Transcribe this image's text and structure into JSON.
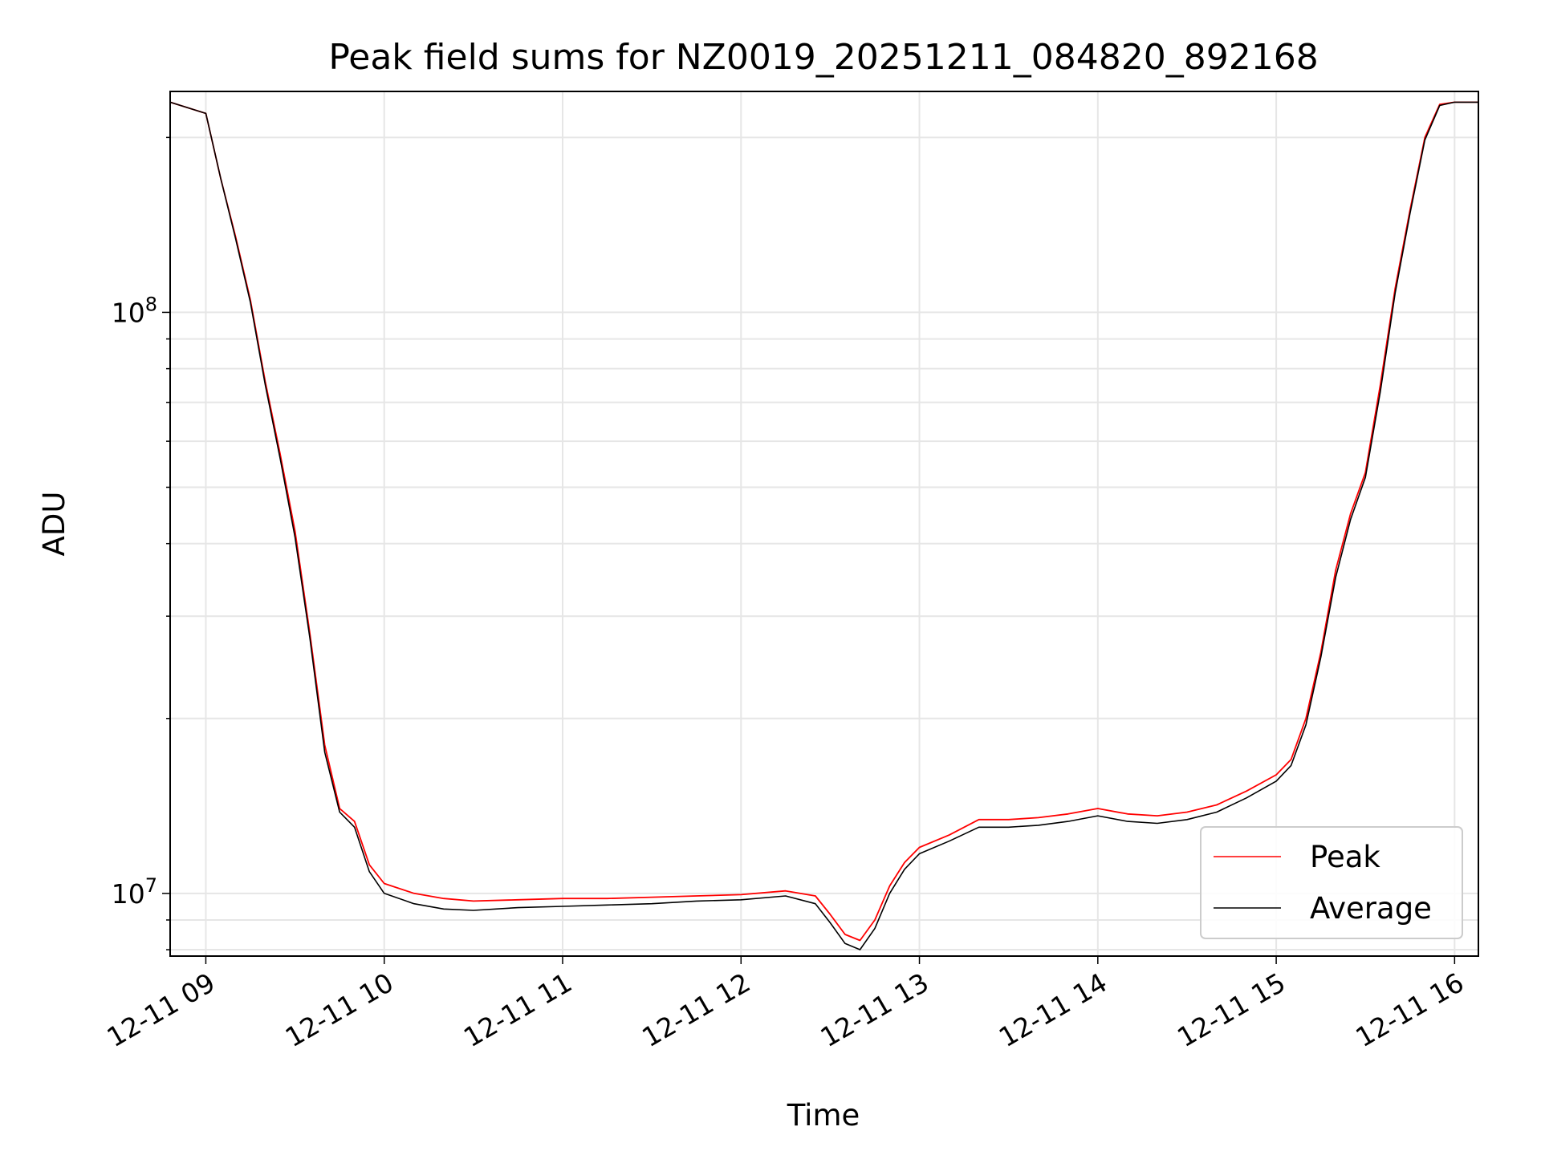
{
  "chart_data": {
    "type": "line",
    "title": "Peak field sums for NZ0019_20251211_084820_892168",
    "xlabel": "Time",
    "ylabel": "ADU",
    "y_scale": "log",
    "ylim": [
      7800000,
      240000000
    ],
    "xlim": [
      "12-11 08:48",
      "12-11 16:08"
    ],
    "x_ticks": [
      "12-11 09",
      "12-11 10",
      "12-11 11",
      "12-11 12",
      "12-11 13",
      "12-11 14",
      "12-11 15",
      "12-11 16"
    ],
    "y_ticks": [
      {
        "value": 10000000,
        "base": "10",
        "exp": "7"
      },
      {
        "value": 100000000,
        "base": "10",
        "exp": "8"
      }
    ],
    "grid": true,
    "legend_placement": "lower right",
    "x_units": "time of day (12-11)",
    "series": [
      {
        "name": "Peak",
        "color": "#ff0000",
        "x": [
          "08:48",
          "09:00",
          "09:05",
          "09:10",
          "09:15",
          "09:20",
          "09:25",
          "09:30",
          "09:35",
          "09:40",
          "09:45",
          "09:50",
          "09:55",
          "10:00",
          "10:10",
          "10:20",
          "10:30",
          "10:45",
          "11:00",
          "11:15",
          "11:30",
          "11:45",
          "12:00",
          "12:15",
          "12:25",
          "12:30",
          "12:35",
          "12:40",
          "12:45",
          "12:50",
          "12:55",
          "13:00",
          "13:10",
          "13:20",
          "13:30",
          "13:40",
          "13:50",
          "14:00",
          "14:10",
          "14:20",
          "14:30",
          "14:40",
          "14:50",
          "15:00",
          "15:05",
          "15:10",
          "15:15",
          "15:20",
          "15:25",
          "15:30",
          "15:35",
          "15:40",
          "15:45",
          "15:50",
          "15:55",
          "16:00",
          "16:08"
        ],
        "values": [
          230000000,
          220000000,
          170000000,
          135000000,
          105000000,
          76000000,
          57000000,
          42000000,
          28000000,
          18000000,
          14000000,
          13300000,
          11200000,
          10400000,
          10000000,
          9800000,
          9700000,
          9750000,
          9800000,
          9800000,
          9850000,
          9900000,
          9950000,
          10100000,
          9900000,
          9200000,
          8500000,
          8300000,
          9000000,
          10300000,
          11300000,
          12000000,
          12600000,
          13400000,
          13400000,
          13500000,
          13700000,
          14000000,
          13700000,
          13600000,
          13800000,
          14200000,
          15000000,
          16000000,
          17000000,
          20000000,
          26000000,
          36000000,
          45000000,
          53000000,
          75000000,
          110000000,
          150000000,
          200000000,
          228000000,
          230000000,
          230000000
        ]
      },
      {
        "name": "Average",
        "color": "#000000",
        "x": [
          "08:48",
          "09:00",
          "09:05",
          "09:10",
          "09:15",
          "09:20",
          "09:25",
          "09:30",
          "09:35",
          "09:40",
          "09:45",
          "09:50",
          "09:55",
          "10:00",
          "10:10",
          "10:20",
          "10:30",
          "10:45",
          "11:00",
          "11:15",
          "11:30",
          "11:45",
          "12:00",
          "12:15",
          "12:25",
          "12:30",
          "12:35",
          "12:40",
          "12:45",
          "12:50",
          "12:55",
          "13:00",
          "13:10",
          "13:20",
          "13:30",
          "13:40",
          "13:50",
          "14:00",
          "14:10",
          "14:20",
          "14:30",
          "14:40",
          "14:50",
          "15:00",
          "15:05",
          "15:10",
          "15:15",
          "15:20",
          "15:25",
          "15:30",
          "15:35",
          "15:40",
          "15:45",
          "15:50",
          "15:55",
          "16:00",
          "16:08"
        ],
        "values": [
          230000000,
          220000000,
          170000000,
          134000000,
          104000000,
          75000000,
          56000000,
          41000000,
          27500000,
          17500000,
          13800000,
          13000000,
          10900000,
          10000000,
          9600000,
          9400000,
          9350000,
          9450000,
          9500000,
          9550000,
          9600000,
          9700000,
          9750000,
          9900000,
          9600000,
          8900000,
          8200000,
          8000000,
          8700000,
          10000000,
          11000000,
          11700000,
          12300000,
          13000000,
          13000000,
          13100000,
          13300000,
          13600000,
          13300000,
          13200000,
          13400000,
          13800000,
          14600000,
          15600000,
          16600000,
          19500000,
          25500000,
          35000000,
          44000000,
          52000000,
          73000000,
          108000000,
          148000000,
          198000000,
          227000000,
          230000000,
          230000000
        ]
      }
    ]
  }
}
